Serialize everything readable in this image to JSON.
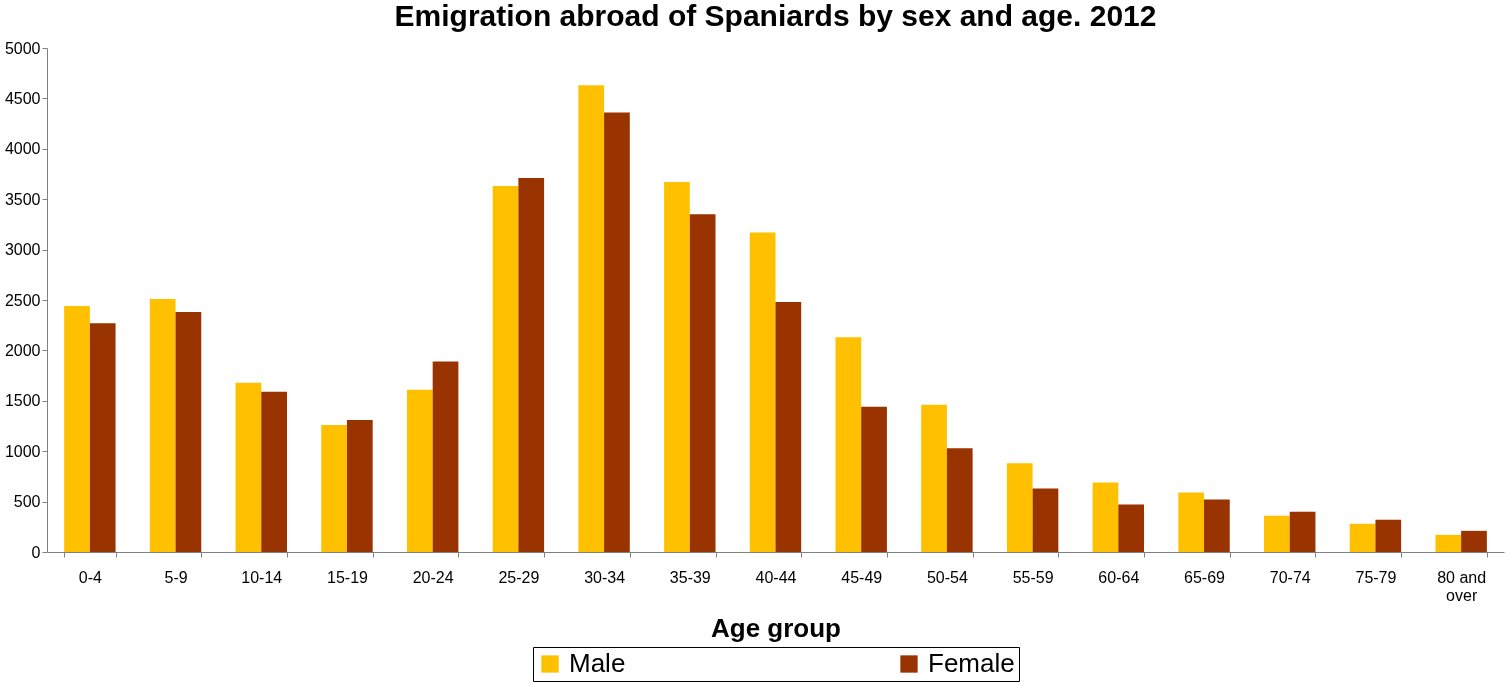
{
  "chart_data": {
    "type": "bar",
    "title": "Emigration abroad of Spaniards by sex and age. 2012",
    "xlabel": "Age group",
    "categories": [
      "0-4",
      "5-9",
      "10-14",
      "15-19",
      "20-24",
      "25-29",
      "30-34",
      "35-39",
      "40-44",
      "45-49",
      "50-54",
      "55-59",
      "60-64",
      "65-69",
      "70-74",
      "75-79",
      "80 and over"
    ],
    "series": [
      {
        "name": "Male",
        "color": "#ffc000",
        "values": [
          2440,
          2510,
          1680,
          1260,
          1610,
          3630,
          4630,
          3670,
          3170,
          2130,
          1460,
          880,
          690,
          590,
          360,
          280,
          170
        ]
      },
      {
        "name": "Female",
        "color": "#993300",
        "values": [
          2270,
          2380,
          1590,
          1310,
          1890,
          3710,
          4360,
          3350,
          2480,
          1440,
          1030,
          630,
          470,
          520,
          400,
          320,
          210
        ]
      }
    ],
    "ylim": [
      0,
      5000
    ],
    "yticks": [
      0,
      500,
      1000,
      1500,
      2000,
      2500,
      3000,
      3500,
      4000,
      4500,
      5000
    ],
    "grid": false,
    "legend": "bottom"
  }
}
